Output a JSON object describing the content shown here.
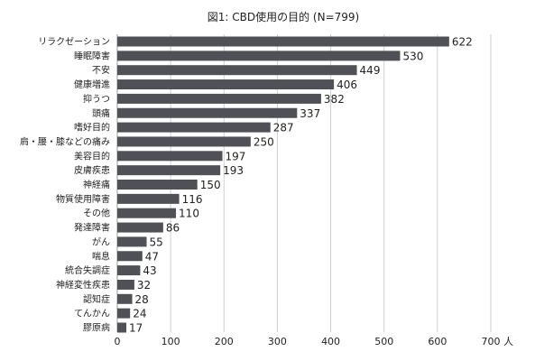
{
  "chart_data": {
    "type": "bar",
    "orientation": "horizontal",
    "title": "図1: CBD使用の目的 (N=799)",
    "x_unit_label": "人",
    "xlim": [
      0,
      700
    ],
    "x_ticks": [
      "0",
      "100",
      "200",
      "300",
      "400",
      "500",
      "600",
      "700"
    ],
    "grid": true,
    "bar_color": "#4f5156",
    "categories": [
      "リラクゼーション",
      "睡眠障害",
      "不安",
      "健康増進",
      "抑うつ",
      "頭痛",
      "嗜好目的",
      "肩・腰・膝などの痛み",
      "美容目的",
      "皮膚疾患",
      "神経痛",
      "物質使用障害",
      "その他",
      "発達障害",
      "がん",
      "喘息",
      "統合失調症",
      "神経変性疾患",
      "認知症",
      "てんかん",
      "膠原病"
    ],
    "values": [
      622,
      530,
      449,
      406,
      382,
      337,
      287,
      250,
      197,
      193,
      150,
      116,
      110,
      86,
      55,
      47,
      43,
      32,
      28,
      24,
      17
    ]
  }
}
